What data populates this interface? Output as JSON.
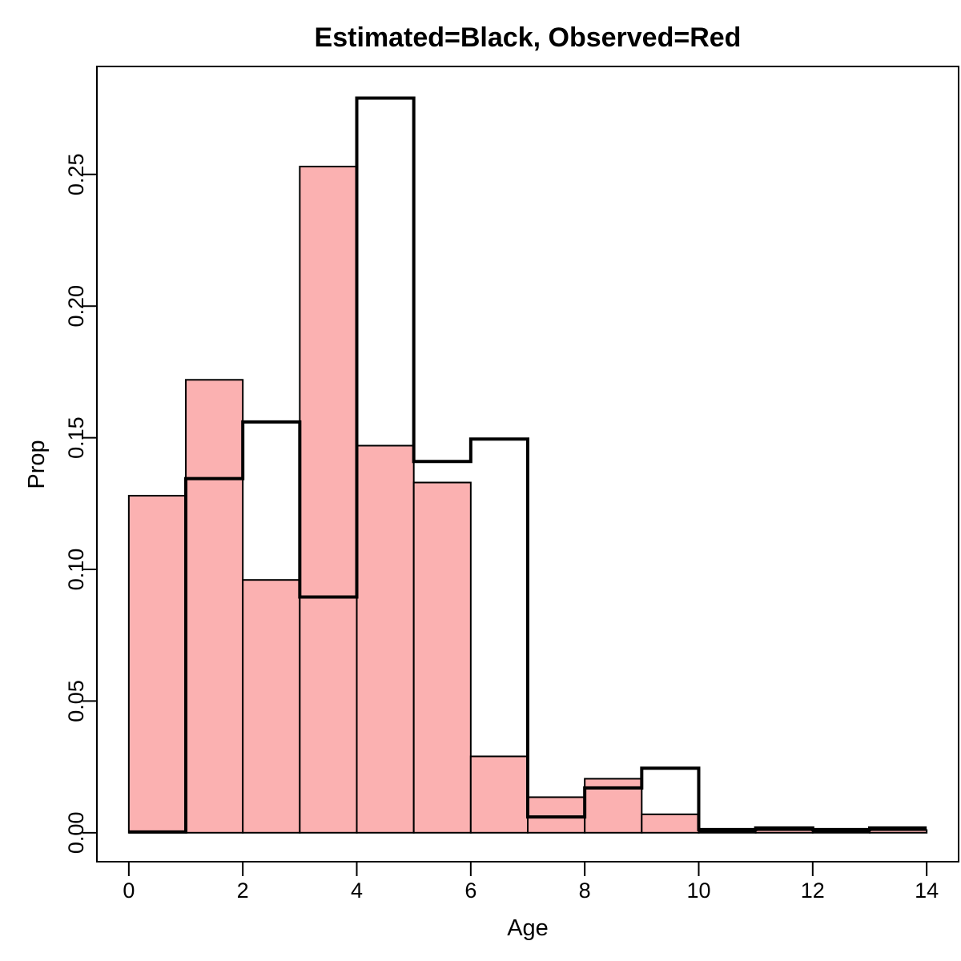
{
  "chart_data": {
    "type": "bar",
    "title": "Estimated=Black, Observed=Red",
    "xlabel": "Age",
    "ylabel": "Prop",
    "xlim": [
      -0.56,
      14.56
    ],
    "ylim": [
      -0.011,
      0.291
    ],
    "x_ticks": [
      0,
      2,
      4,
      6,
      8,
      10,
      12,
      14
    ],
    "y_ticks": [
      0.0,
      0.05,
      0.1,
      0.15,
      0.2,
      0.25
    ],
    "y_tick_labels": [
      "0.00",
      "0.05",
      "0.10",
      "0.15",
      "0.20",
      "0.25"
    ],
    "bin_edges": [
      0,
      1,
      2,
      3,
      4,
      5,
      6,
      7,
      8,
      9,
      10,
      11,
      12,
      13,
      14
    ],
    "series": [
      {
        "name": "Observed",
        "style": "filled-bars",
        "fill": "#fbb1b1",
        "stroke": "#000000",
        "values": [
          0.128,
          0.172,
          0.096,
          0.253,
          0.147,
          0.133,
          0.029,
          0.0135,
          0.0205,
          0.007,
          0.0005,
          0.001,
          0.0005,
          0.001
        ]
      },
      {
        "name": "Estimated",
        "style": "step-outline",
        "stroke": "#000000",
        "values": [
          0.0003,
          0.1345,
          0.156,
          0.0895,
          0.279,
          0.141,
          0.1495,
          0.006,
          0.017,
          0.0245,
          0.0012,
          0.0018,
          0.0012,
          0.0018
        ]
      }
    ]
  }
}
